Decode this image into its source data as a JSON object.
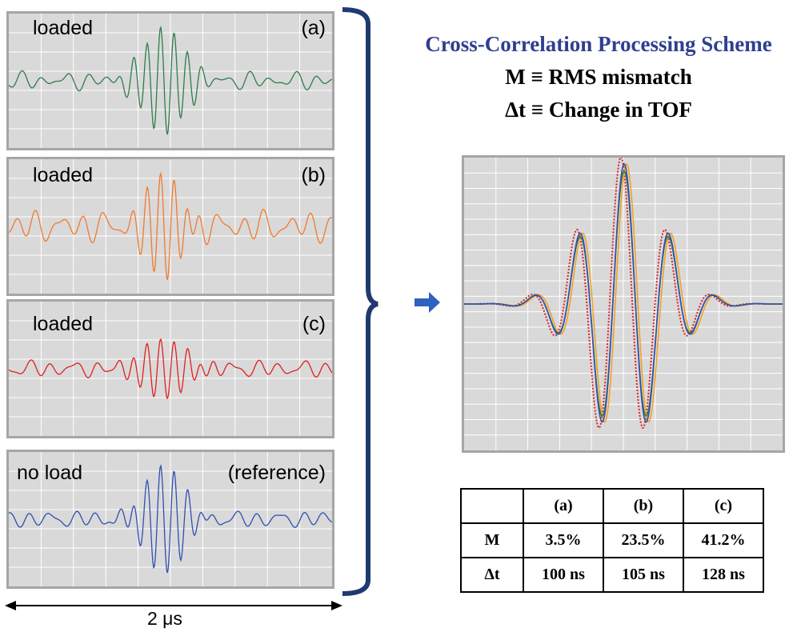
{
  "panels": [
    {
      "label_left": "loaded",
      "label_right": "(a)",
      "color": "#2e7d4a",
      "seed": 3,
      "amp": 1.0,
      "damp": 1.0
    },
    {
      "label_left": "loaded",
      "label_right": "(b)",
      "color": "#f07a30",
      "seed": 7,
      "amp": 1.0,
      "damp": 0.85
    },
    {
      "label_left": "loaded",
      "label_right": "(c)",
      "color": "#e02020",
      "seed": 11,
      "amp": 0.55,
      "damp": 1.2
    },
    {
      "label_left": "no load",
      "label_right": "(reference)",
      "color": "#3050b0",
      "seed": 5,
      "amp": 1.0,
      "damp": 1.0
    }
  ],
  "time_span_label": "2 μs",
  "title": "Cross-Correlation Processing Scheme",
  "subtitle_m": "M ≡ RMS mismatch",
  "subtitle_dt": "Δt ≡ Change in TOF",
  "overlay_colors": [
    "#e02020",
    "#f5a020",
    "#2e7d4a",
    "#3050b0"
  ],
  "table": {
    "headers": [
      "",
      "(a)",
      "(b)",
      "(c)"
    ],
    "rows": [
      [
        "M",
        "3.5%",
        "23.5%",
        "41.2%"
      ],
      [
        "Δt",
        "100 ns",
        "105 ns",
        "128 ns"
      ]
    ]
  },
  "colors": {
    "panel_bg": "#d9d9d9",
    "grid": "#ffffff",
    "brace": "#1f3a6e",
    "arrow": "#3060c0",
    "title": "#2f3f8f"
  }
}
